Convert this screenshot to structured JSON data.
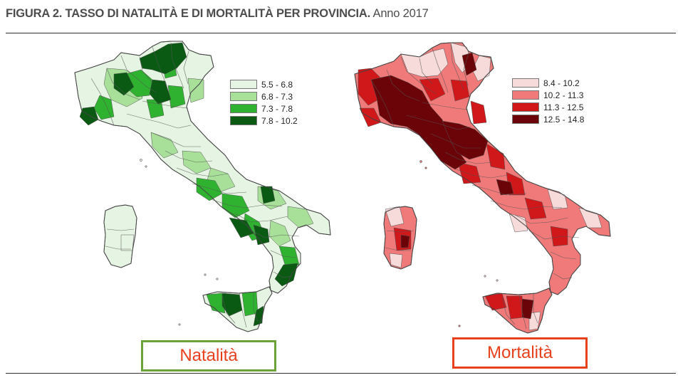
{
  "figure": {
    "title_bold": "FIGURA 2. TASSO DI NATALITÀ E DI MORTALITÀ PER PROVINCIA.",
    "title_year": "Anno 2017"
  },
  "maps": [
    {
      "id": "natalita",
      "label": "Natalità",
      "label_border_color": "#6aa33a",
      "legend": [
        {
          "range": "5.5 - 6.8",
          "color": "#e6f5e3"
        },
        {
          "range": "6.8 - 7.3",
          "color": "#a8e09a"
        },
        {
          "range": "7.3 - 7.8",
          "color": "#2fb22f"
        },
        {
          "range": "7.8 - 10.2",
          "color": "#0b5a14"
        }
      ]
    },
    {
      "id": "mortalita",
      "label": "Mortalità",
      "label_border_color": "#e8401c",
      "legend": [
        {
          "range": "8.4 - 10.2",
          "color": "#f7dada"
        },
        {
          "range": "10.2 - 11.3",
          "color": "#f07a7a"
        },
        {
          "range": "11.3 - 12.5",
          "color": "#d0171a"
        },
        {
          "range": "12.5 - 14.8",
          "color": "#6a0408"
        }
      ]
    }
  ]
}
